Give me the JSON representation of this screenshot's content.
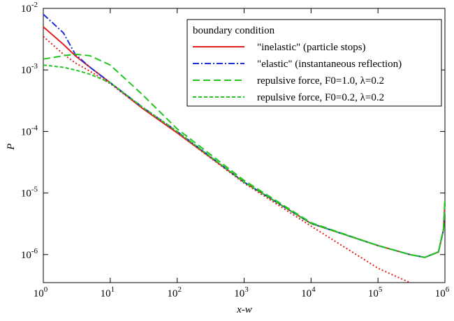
{
  "chart_data": {
    "type": "line",
    "log_x": true,
    "log_y": true,
    "x_label": "x-w",
    "y_label": "P",
    "legend_title": "boundary condition",
    "legend_position": "upper right",
    "xlim": [
      1,
      1000000
    ],
    "xticks": [
      {
        "value": 1,
        "label": "10",
        "exponent": "0"
      },
      {
        "value": 10,
        "label": "10",
        "exponent": "1"
      },
      {
        "value": 100,
        "label": "10",
        "exponent": "2"
      },
      {
        "value": 1000,
        "label": "10",
        "exponent": "3"
      },
      {
        "value": 10000,
        "label": "10",
        "exponent": "4"
      },
      {
        "value": 100000,
        "label": "10",
        "exponent": "5"
      },
      {
        "value": 1000000,
        "label": "10",
        "exponent": "6"
      }
    ],
    "ylim": [
      3.5e-07,
      0.01
    ],
    "yticks": [
      {
        "value": 1e-06,
        "label": "10",
        "exponent": "-6"
      },
      {
        "value": 1e-05,
        "label": "10",
        "exponent": "-5"
      },
      {
        "value": 0.0001,
        "label": "10",
        "exponent": "-4"
      },
      {
        "value": 0.001,
        "label": "10",
        "exponent": "-3"
      },
      {
        "value": 0.01,
        "label": "10",
        "exponent": "-2"
      }
    ],
    "x": [
      1,
      2,
      3,
      5,
      10,
      30,
      100,
      1000,
      10000,
      100000,
      300000,
      500000,
      800000,
      950000,
      1000000
    ],
    "series": [
      {
        "color": "#e0201c",
        "dash": "2,3",
        "values": [
          0.0035,
          0.0018,
          0.0013,
          0.00095,
          0.0006,
          0.00024,
          9.5e-05,
          1.45e-05,
          2.9e-06,
          6e-07,
          3.5e-07,
          null,
          null,
          null,
          null
        ]
      },
      {
        "name": "\"inelastic\" (particle stops)",
        "color": "#e0201c",
        "dash": "",
        "values": [
          0.005,
          0.0026,
          0.0017,
          0.0011,
          0.00062,
          0.00024,
          9.5e-05,
          1.5e-05,
          3.2e-06,
          1.4e-06,
          1e-06,
          9e-07,
          1.1e-06,
          2.5e-06,
          7e-06
        ]
      },
      {
        "name": "\"elastic\" (instantaneous reflection)",
        "color": "#1c2fd8",
        "dash": "9,3,2,3",
        "values": [
          0.008,
          0.004,
          0.0018,
          0.0011,
          0.00062,
          0.00025,
          0.0001,
          1.5e-05,
          3.2e-06,
          1.4e-06,
          1e-06,
          9e-07,
          1.1e-06,
          2.5e-06,
          7e-06
        ]
      },
      {
        "name": "repulsive force, F0=1.0, λ=0.2",
        "color": "#22c422",
        "dash": "10,5",
        "values": [
          0.0015,
          0.0017,
          0.0018,
          0.0017,
          0.0012,
          0.0004,
          0.00011,
          1.6e-05,
          3.3e-06,
          1.4e-06,
          1e-06,
          9e-07,
          1.1e-06,
          2.6e-06,
          8e-06
        ]
      },
      {
        "name": "repulsive force, F0=0.2, λ=0.2",
        "color": "#22c422",
        "dash": "5,3",
        "values": [
          0.0012,
          0.0011,
          0.001,
          0.00085,
          0.00062,
          0.00025,
          0.0001,
          1.5e-05,
          3.2e-06,
          1.4e-06,
          1e-06,
          9e-07,
          1.1e-06,
          2.5e-06,
          7.5e-06
        ]
      }
    ]
  }
}
